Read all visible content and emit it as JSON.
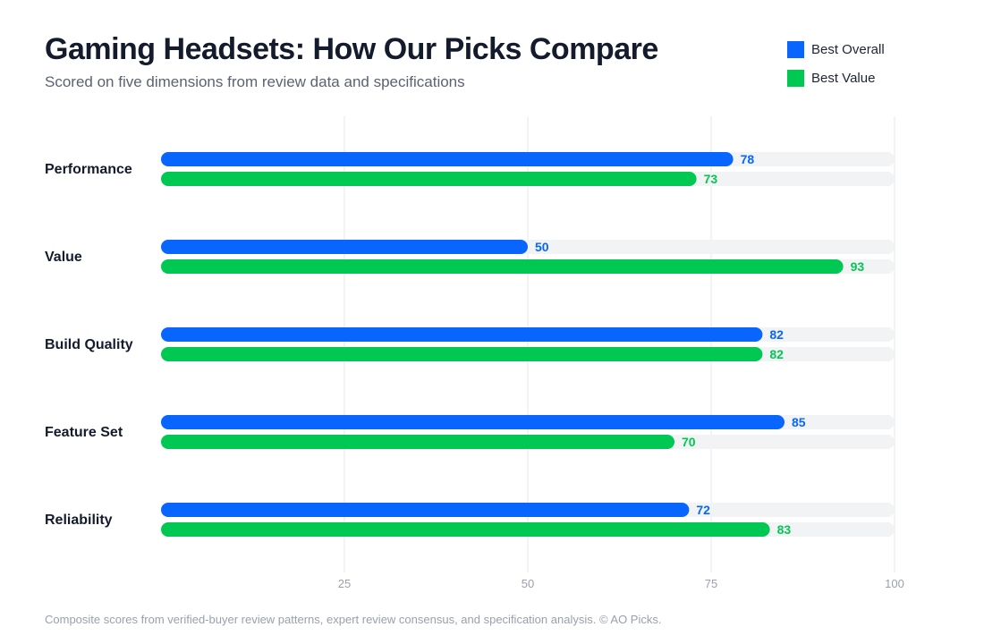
{
  "header": {
    "title": "Gaming Headsets: How Our Picks Compare",
    "subtitle": "Scored on five dimensions from review data and specifications"
  },
  "footnote": "Composite scores from verified-buyer review patterns, expert review consensus, and specification analysis. © AO Picks.",
  "colors": {
    "best_overall": "#0866ff",
    "best_value": "#00c853",
    "track": "#f2f3f5",
    "grid": "#e6e7ea",
    "tick_text": "#9aa0ab",
    "category_text": "#141b2d"
  },
  "chart_data": {
    "type": "bar",
    "orientation": "horizontal",
    "categories": [
      "Performance",
      "Value",
      "Build Quality",
      "Feature Set",
      "Reliability"
    ],
    "series": [
      {
        "name": "Best Overall",
        "color": "#0866ff",
        "values": [
          78,
          50,
          82,
          85,
          72
        ]
      },
      {
        "name": "Best Value",
        "color": "#00c853",
        "values": [
          73,
          93,
          82,
          70,
          83
        ]
      }
    ],
    "xlim": [
      0,
      100
    ],
    "xticks": [
      25,
      50,
      75,
      100
    ],
    "grid": true,
    "legend_position": "top-right",
    "data_labels": true
  }
}
